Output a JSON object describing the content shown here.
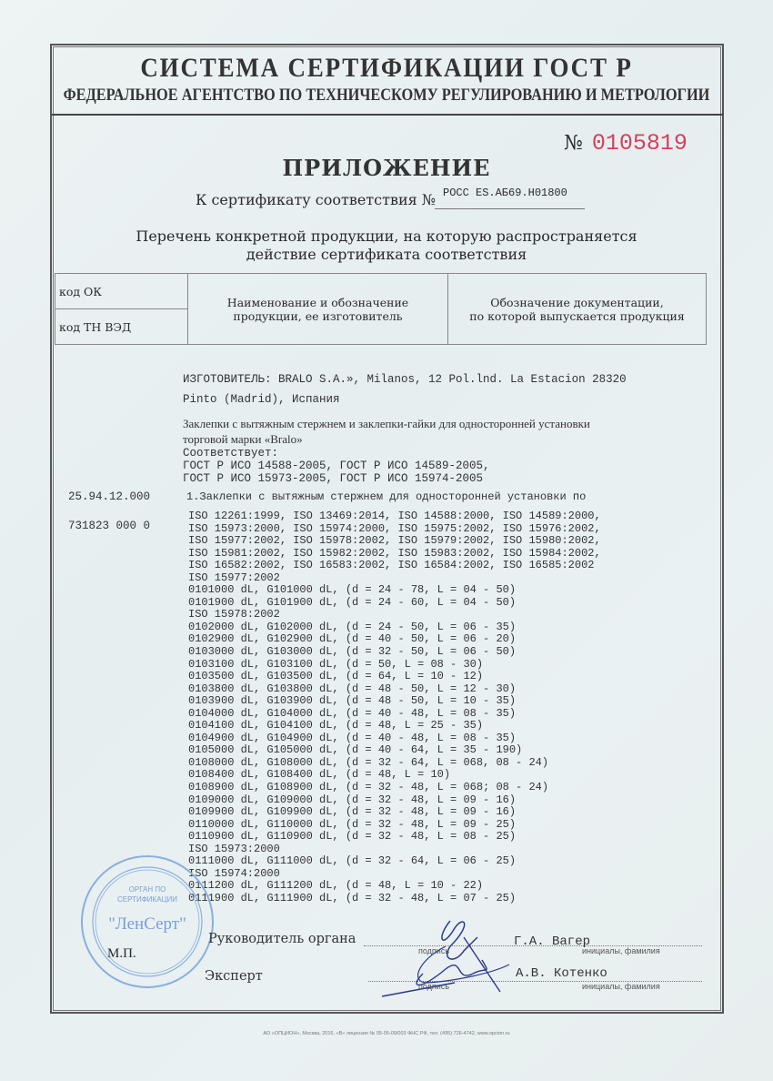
{
  "header": {
    "system": "СИСТЕМА СЕРТИФИКАЦИИ ГОСТ Р",
    "agency": "ФЕДЕРАЛЬНОЕ АГЕНТСТВО ПО ТЕХНИЧЕСКОМУ РЕГУЛИРОВАНИЮ И МЕТРОЛОГИИ"
  },
  "form_number": {
    "label": "№",
    "value": "0105819",
    "color": "#d6405a"
  },
  "title": "ПРИЛОЖЕНИЕ",
  "certificate": {
    "label": "К сертификату соответствия №",
    "value": "РОСС ES.АБ69.Н01800"
  },
  "list_title": [
    "Перечень конкретной продукции,  на которую распространяется",
    "действие сертификата соответствия"
  ],
  "table_header": {
    "code_ok": "код ОК",
    "code_tnved": "код ТН ВЭД",
    "name": [
      "Наименование и обозначение",
      "продукции, ее изготовитель"
    ],
    "docs": [
      "Обозначение документации,",
      "по которой выпускается продукция"
    ]
  },
  "manufacturer": [
    "ИЗГОТОВИТЕЛЬ: BRALO S.A.», Milanos, 12 Pol.lnd. La Estacion 28320",
    "Pinto (Madrid), Испания"
  ],
  "product_desc": [
    "Заклепки с вытяжным стержнем и заклепки-гайки для односторонней установки",
    "торговой марки «Bralo»"
  ],
  "conforms": [
    "Соответствует:",
    "ГОСТ Р ИСО 14588-2005, ГОСТ Р ИСО 14589-2005,",
    "ГОСТ Р ИСО 15973-2005, ГОСТ Р ИСО 15974-2005"
  ],
  "codes": {
    "ok": "25.94.12.000",
    "tnved": "731823 000 0"
  },
  "item_title": "1.Заклепки с вытяжным стержнем для односторонней установки по",
  "items": [
    "ISO 12261:1999, ISO 13469:2014, ISO 14588:2000, ISO 14589:2000,",
    "ISO 15973:2000, ISO 15974:2000, ISO 15975:2002, ISO 15976:2002,",
    "ISO 15977:2002, ISO 15978:2002, ISO 15979:2002, ISO 15980:2002,",
    "ISO 15981:2002, ISO 15982:2002, ISO 15983:2002, ISO 15984:2002,",
    "ISO 16582:2002, ISO 16583:2002, ISO 16584:2002, ISO 16585:2002",
    "ISO 15977:2002",
    "0101000 dL, G101000 dL, (d = 24 - 78, L = 04 - 50)",
    "0101900 dL, G101900 dL, (d = 24 - 60, L = 04 - 50)",
    "ISO 15978:2002",
    "0102000 dL, G102000 dL, (d = 24 - 50, L = 06 - 35)",
    "0102900 dL, G102900 dL, (d = 40 - 50, L = 06 - 20)",
    "0103000 dL, G103000 dL, (d = 32 - 50, L = 06 - 50)",
    "0103100 dL, G103100 dL, (d = 50, L = 08 - 30)",
    "0103500 dL, G103500 dL, (d = 64, L = 10 - 12)",
    "0103800 dL, G103800 dL, (d = 48 - 50, L = 12 - 30)",
    "0103900 dL, G103900 dL, (d = 48 - 50, L = 10 - 35)",
    "0104000 dL, G104000 dL, (d = 40 - 48, L = 08 - 35)",
    "0104100 dL, G104100 dL, (d = 48, L = 25 - 35)",
    "0104900 dL, G104900 dL, (d = 40 - 48, L = 08 - 35)",
    "0105000 dL, G105000 dL, (d = 40 - 64, L = 35 - 190)",
    "0108000 dL, G108000 dL, (d = 32 - 64, L = 068, 08 - 24)",
    "0108400 dL, G108400 dL, (d = 48, L = 10)",
    "0108900 dL, G108900 dL, (d = 32 - 48, L = 068; 08 - 24)",
    "0109000 dL, G109000 dL, (d = 32 - 48, L = 09 - 16)",
    "0109900 dL, G109900 dL, (d = 32 - 48, L = 09 - 16)",
    "0110000 dL, G110000 dL, (d = 32 - 48, L = 09 - 25)",
    "0110900 dL, G110900 dL, (d = 32 - 48, L = 08 - 25)",
    "ISO 15973:2000",
    "0111000 dL, G111000 dL, (d = 32 - 64, L = 06 - 25)",
    "ISO 15974:2000",
    "0111200 dL, G111200 dL, (d = 48, L = 10 - 22)",
    "0111900 dL, G111900 dL, (d = 32 - 48, L = 07 - 25)"
  ],
  "signatures": {
    "head_label": "Руководитель органа",
    "head_name": "Г.А. Вагер",
    "expert_label": "Эксперт",
    "expert_name": "А.В. Котенко",
    "signature_caption": "подпись",
    "name_caption": "инициалы, фамилия",
    "seal_label": "М.П."
  },
  "stamp": {
    "lines": [
      "ОРГАН ПО",
      "СЕРТИФИКАЦИИ",
      "\"ЛенСерт\""
    ],
    "color": "#7a9fd6"
  },
  "footer": "АО «ОПЦИОН», Москва, 2016, «В»   лицензия № 05-05-09/003 ФНС РФ, тел. (495) 726-4742, www.opcion.ru"
}
